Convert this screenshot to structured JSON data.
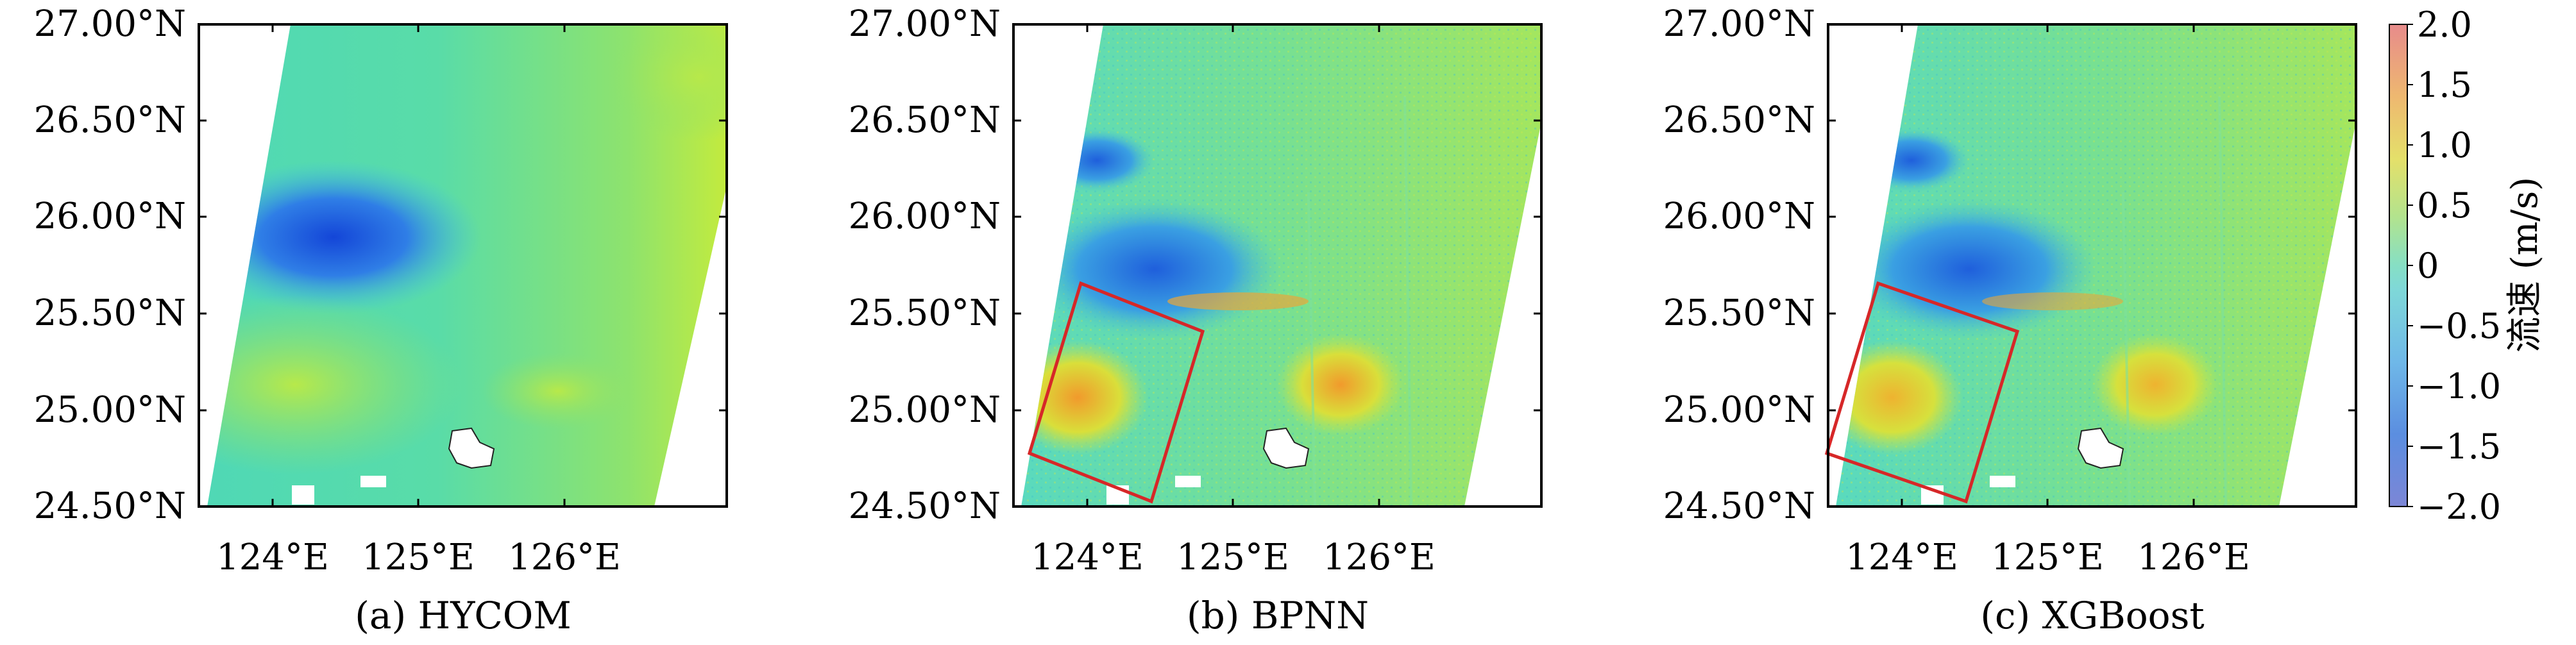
{
  "latitude_ticks": [
    "27.00°N",
    "26.50°N",
    "26.00°N",
    "25.50°N",
    "25.00°N",
    "24.50°N"
  ],
  "longitude_ticks": [
    "124°E",
    "125°E",
    "126°E"
  ],
  "panels": [
    {
      "id": "hycom",
      "caption": "(a) HYCOM",
      "highlight_box": false
    },
    {
      "id": "bpnn",
      "caption": "(b) BPNN",
      "highlight_box": true
    },
    {
      "id": "xgboost",
      "caption": "(c) XGBoost",
      "highlight_box": true
    }
  ],
  "colorbar": {
    "title": "流速 (m/s)",
    "ticks": [
      "2.0",
      "1.5",
      "1.0",
      "0.5",
      "0",
      "−0.5",
      "−1.0",
      "−1.5",
      "−2.0"
    ],
    "min": -2.0,
    "max": 2.0
  },
  "colors": {
    "highlight_box": "#d62728",
    "land": "#ffffff",
    "background_field": "#6fe3b4"
  }
}
